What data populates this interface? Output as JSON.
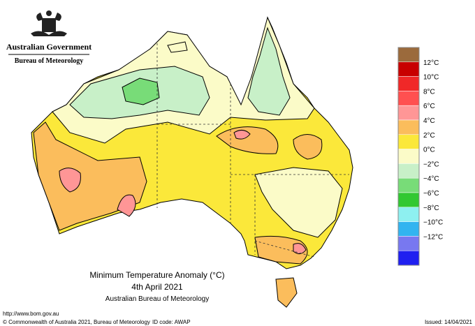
{
  "header": {
    "title": "Australian Government",
    "subtitle": "Bureau of Meteorology"
  },
  "map": {
    "title": "Minimum Temperature Anomaly (°C)",
    "date": "4th April 2021",
    "source": "Australian Bureau of Meteorology"
  },
  "legend": {
    "colors": [
      "#9b6a3c",
      "#c80000",
      "#f02828",
      "#ff5050",
      "#ff9696",
      "#fbbd5c",
      "#fbe83a",
      "#fbfbc8",
      "#c8f0c8",
      "#78dc78",
      "#32c832",
      "#8ef0f0",
      "#32b4f0",
      "#7878f0",
      "#2020f0"
    ],
    "labels": [
      "12°C",
      "10°C",
      "8°C",
      "6°C",
      "4°C",
      "2°C",
      "0°C",
      "−2°C",
      "−4°C",
      "−6°C",
      "−8°C",
      "−10°C",
      "−12°C"
    ]
  },
  "footer": {
    "url": "http://www.bom.gov.au",
    "copyright": "© Commonwealth of Australia 2021, Bureau of Meteorology",
    "id": "ID code: AWAP",
    "issued": "Issued: 14/04/2021"
  }
}
